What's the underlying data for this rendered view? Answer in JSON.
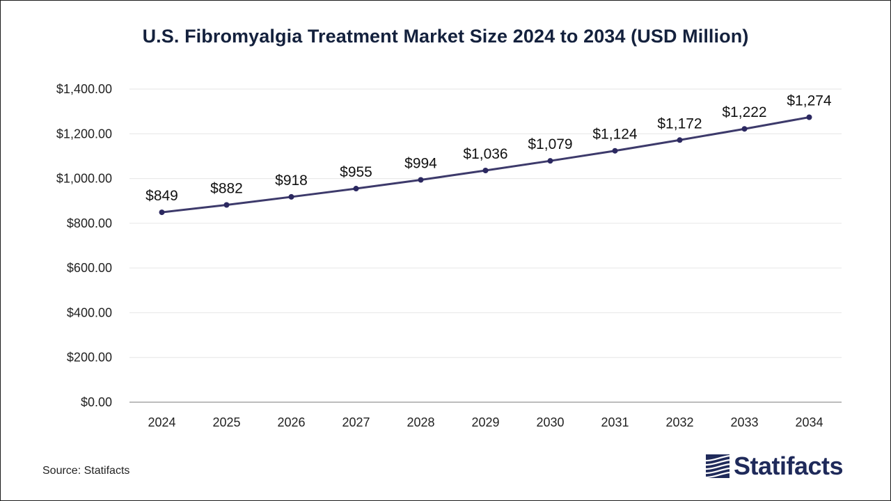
{
  "chart_data": {
    "type": "line",
    "title": "U.S. Fibromyalgia Treatment Market Size 2024 to 2034 (USD Million)",
    "xlabel": "",
    "ylabel": "",
    "categories": [
      "2024",
      "2025",
      "2026",
      "2027",
      "2028",
      "2029",
      "2030",
      "2031",
      "2032",
      "2033",
      "2034"
    ],
    "values": [
      849,
      882,
      918,
      955,
      994,
      1036,
      1079,
      1124,
      1172,
      1222,
      1274
    ],
    "data_labels": [
      "$849",
      "$882",
      "$918",
      "$955",
      "$994",
      "$1,036",
      "$1,079",
      "$1,124",
      "$1,172",
      "$1,222",
      "$1,274"
    ],
    "ylim": [
      0,
      1400
    ],
    "yticks": [
      0,
      200,
      400,
      600,
      800,
      1000,
      1200,
      1400
    ],
    "ytick_labels": [
      "$0.00",
      "$200.00",
      "$400.00",
      "$600.00",
      "$800.00",
      "$1,000.00",
      "$1,200.00",
      "$1,400.00"
    ],
    "grid": true,
    "legend": "none",
    "colors": {
      "line": "#3d3a6b",
      "marker": "#2b2860",
      "title": "#14213d",
      "grid": "#e6e6e6",
      "axis": "#a6a6a6"
    }
  },
  "footer": {
    "source": "Source: Statifacts"
  },
  "brand": {
    "name": "Statifacts",
    "icon": "statifacts-logo-icon"
  }
}
